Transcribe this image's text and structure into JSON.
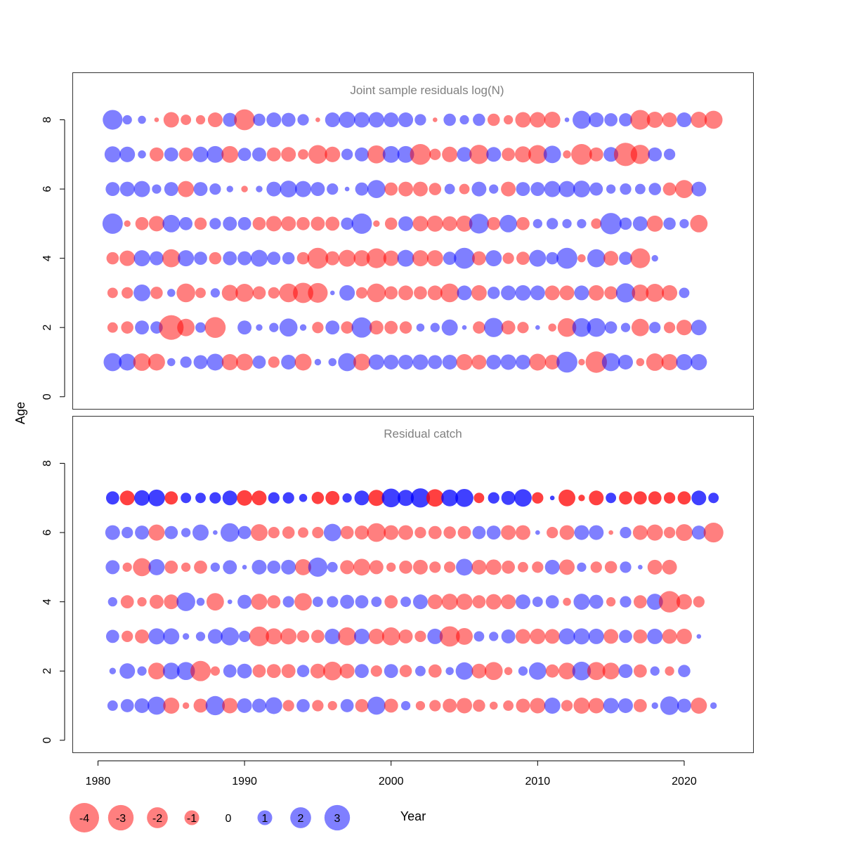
{
  "chart_data": {
    "type": "scatter",
    "kind": "bubble-residual-plot",
    "xlabel": "Year",
    "ylabel": "Age",
    "x_ticks": [
      1980,
      1990,
      2000,
      2010,
      2020
    ],
    "x_range": [
      1978.3,
      2024.7
    ],
    "y_ticks": [
      0,
      2,
      4,
      6,
      8
    ],
    "y_range": [
      -0.35,
      9.35
    ],
    "colors": {
      "positive": "#0000ff",
      "negative": "#ff0000"
    },
    "legend": {
      "position": "bottom-left",
      "values": [
        -4,
        -3,
        -2,
        -1,
        0,
        1,
        2,
        3
      ],
      "labels": [
        "-4",
        "-3",
        "-2",
        "-1",
        "0",
        "1",
        "2",
        "3"
      ]
    },
    "panels": [
      {
        "title": "Joint sample residuals log(N)",
        "first_year": 1981,
        "opacity": 0.5,
        "ages": [
          1,
          2,
          3,
          4,
          5,
          6,
          7,
          8
        ],
        "residuals": [
          [
            1.5,
            1.3,
            -1.4,
            -1.3,
            0.3,
            0.6,
            0.9,
            1.3,
            -1.2,
            -1.3,
            0.8,
            -0.6,
            1.0,
            -1.3,
            0.2,
            0.3,
            1.5,
            -1.3,
            1.1,
            1.0,
            1.0,
            1.1,
            0.9,
            1.0,
            -1.2,
            -1.0,
            1.0,
            1.1,
            1.0,
            -1.3,
            -1.0,
            2.0,
            -0.2,
            -2.1,
            1.5,
            1.0,
            -0.3,
            -1.4,
            -1.2,
            1.2,
            1.2
          ],
          [
            -0.5,
            -0.7,
            0.9,
            0.7,
            -2.8,
            -1.4,
            0.5,
            -2.0,
            0,
            0.9,
            0.2,
            0.4,
            1.5,
            0.2,
            -0.6,
            0.9,
            -0.7,
            1.9,
            -0.9,
            -0.8,
            -0.7,
            0.3,
            0.4,
            1.2,
            0.1,
            -0.7,
            1.7,
            -0.9,
            -0.6,
            0.1,
            -0.3,
            -1.6,
            1.6,
            1.6,
            0.7,
            0.4,
            -1.4,
            0.6,
            -0.6,
            -1.1,
            1.1
          ],
          [
            -0.5,
            -0.6,
            1.3,
            -0.7,
            0.3,
            -1.6,
            -0.5,
            0.4,
            -1.2,
            -1.5,
            -0.8,
            -0.6,
            -1.6,
            -1.9,
            -1.8,
            0.1,
            1.1,
            -0.6,
            -1.6,
            -0.8,
            -1.0,
            -0.8,
            -1.0,
            -1.6,
            1.0,
            -1.1,
            0.7,
            1.0,
            1.1,
            1.0,
            -1.0,
            -1.0,
            1.0,
            -1.1,
            -0.8,
            1.7,
            -1.3,
            -1.5,
            -1.1,
            0.5
          ],
          [
            -0.7,
            -1.1,
            1.2,
            0.9,
            -1.5,
            1.2,
            0.8,
            -0.7,
            0.9,
            0.9,
            1.3,
            0.8,
            0.7,
            -0.7,
            -2.0,
            -0.9,
            -1.3,
            -1.2,
            -1.8,
            -1.1,
            1.3,
            -1.2,
            -1.2,
            0.8,
            2.0,
            -0.9,
            1.2,
            -0.6,
            -0.8,
            1.3,
            0.7,
            2.0,
            -0.3,
            1.5,
            -1.0,
            0.8,
            -1.8,
            0.2
          ],
          [
            1.9,
            -0.2,
            -0.8,
            -1.1,
            1.4,
            0.8,
            -0.7,
            0.6,
            0.9,
            0.8,
            -0.8,
            -1.1,
            -1.0,
            -0.8,
            -0.9,
            -0.9,
            0.7,
            1.9,
            -0.2,
            -0.7,
            1.0,
            -1.1,
            -1.2,
            -1.0,
            -1.2,
            1.8,
            -0.8,
            1.4,
            -0.8,
            0.4,
            0.6,
            0.4,
            0.4,
            -0.5,
            2.1,
            0.7,
            1.0,
            -1.2,
            0.7,
            0.4,
            -1.4
          ],
          [
            0.9,
            1.0,
            1.2,
            0.4,
            0.9,
            -1.2,
            0.9,
            0.6,
            0.2,
            -0.2,
            0.2,
            1.0,
            1.3,
            1.2,
            0.9,
            0.6,
            0.1,
            0.8,
            1.5,
            -0.8,
            -1.0,
            -1.0,
            -0.7,
            0.5,
            -0.5,
            1.0,
            0.4,
            -1.0,
            0.9,
            0.9,
            1.2,
            1.2,
            1.3,
            0.8,
            0.4,
            0.6,
            0.5,
            0.7,
            -0.8,
            -1.5,
            1.0
          ],
          [
            1.2,
            1.1,
            0.3,
            -0.9,
            0.9,
            -0.9,
            1.1,
            1.3,
            -1.3,
            0.8,
            0.9,
            -0.9,
            -1.0,
            -0.5,
            -1.6,
            -1.1,
            0.6,
            0.9,
            -1.5,
            1.3,
            1.3,
            -2.0,
            -0.6,
            -1.1,
            1.0,
            -1.7,
            1.0,
            -0.8,
            -1.2,
            -1.6,
            1.4,
            -0.3,
            -2.0,
            -0.9,
            1.0,
            -2.5,
            -1.7,
            0.9,
            0.6
          ],
          [
            1.8,
            0.4,
            0.3,
            -0.1,
            -1.1,
            -0.5,
            -0.4,
            -1.0,
            0.9,
            -2.0,
            0.7,
            1.0,
            0.9,
            0.6,
            -0.1,
            1.0,
            1.2,
            1.1,
            1.1,
            1.0,
            1.0,
            0.6,
            -0.1,
            0.7,
            0.4,
            0.7,
            -0.7,
            -0.4,
            -1.1,
            -1.1,
            -1.2,
            0.1,
            1.5,
            1.0,
            0.8,
            0.8,
            -1.8,
            -1.2,
            -1.0,
            1.0,
            -1.2,
            -1.5
          ]
        ]
      },
      {
        "title": "Residual catch",
        "first_year": 1981,
        "opacity_by_age": [
          0.5,
          0.5,
          0.5,
          0.5,
          0.5,
          0.5,
          0.75
        ],
        "ages": [
          1,
          2,
          3,
          4,
          5,
          6,
          7
        ],
        "residuals": [
          [
            0.5,
            0.8,
            1.0,
            1.5,
            -1.2,
            -0.2,
            -0.9,
            1.7,
            -1.1,
            1.0,
            0.9,
            1.3,
            -0.6,
            0.8,
            -0.6,
            -0.4,
            0.8,
            -0.8,
            1.5,
            -0.9,
            0.4,
            -0.4,
            -0.6,
            -0.9,
            -1.1,
            -0.7,
            -0.3,
            -0.5,
            -0.9,
            -1.1,
            1.2,
            -0.6,
            -1.2,
            -1.1,
            1.1,
            1.0,
            -0.8,
            0.2,
            1.6,
            0.9,
            -1.2,
            0.2
          ],
          [
            0.2,
            1.1,
            0.4,
            -1.3,
            1.3,
            1.5,
            -1.9,
            -0.4,
            0.8,
            1.0,
            -0.8,
            -0.9,
            -0.9,
            0.7,
            -1.0,
            -1.6,
            -1.0,
            0.9,
            -0.6,
            0.9,
            -0.7,
            0.5,
            -0.8,
            0.3,
            1.4,
            -1.0,
            -1.5,
            -0.3,
            0.4,
            1.4,
            -0.8,
            -1.3,
            1.6,
            -1.5,
            -1.3,
            0.9,
            -0.8,
            0.4,
            -0.4,
            0.7
          ],
          [
            0.8,
            -0.6,
            -0.9,
            1.2,
            1.2,
            0.2,
            0.4,
            1.0,
            1.5,
            0.6,
            -1.8,
            -1.2,
            -1.2,
            -0.7,
            -0.8,
            1.1,
            -1.5,
            1.1,
            -1.1,
            -1.5,
            -0.9,
            -0.6,
            1.1,
            -1.9,
            -1.3,
            0.5,
            0.4,
            0.9,
            -1.0,
            -1.1,
            -1.0,
            1.2,
            1.2,
            1.1,
            -1.0,
            0.8,
            -0.9,
            1.1,
            -1.0,
            -1.1,
            0.1
          ],
          [
            0.4,
            -0.8,
            -0.4,
            -0.9,
            -1.0,
            1.6,
            0.3,
            -1.4,
            0.1,
            0.9,
            -1.2,
            -0.8,
            0.6,
            -1.4,
            0.5,
            0.6,
            0.9,
            0.8,
            0.5,
            -0.8,
            0.5,
            1.0,
            -1.0,
            -1.2,
            -1.2,
            -0.8,
            -1.1,
            -1.0,
            1.0,
            0.5,
            0.8,
            -0.3,
            1.2,
            0.9,
            -0.4,
            0.6,
            -0.8,
            1.2,
            -2.1,
            -1.1,
            -0.6
          ],
          [
            0.9,
            -0.4,
            -1.5,
            1.2,
            -0.8,
            -0.4,
            -0.8,
            0.4,
            0.9,
            0.1,
            1.0,
            0.8,
            1.0,
            -1.2,
            1.7,
            0.5,
            -0.9,
            -1.3,
            -0.9,
            -0.4,
            -0.8,
            -1.0,
            -0.6,
            -0.6,
            1.3,
            -1.0,
            -1.1,
            -0.8,
            -0.5,
            -0.6,
            1.0,
            -1.1,
            0.4,
            -0.6,
            -0.7,
            0.6,
            0.1,
            -1.0,
            -1.0
          ],
          [
            1.0,
            0.6,
            0.9,
            -1.2,
            0.8,
            0.4,
            1.2,
            0.1,
            1.6,
            0.8,
            -1.3,
            -0.6,
            -0.7,
            -0.5,
            -0.6,
            1.4,
            -0.8,
            -0.9,
            -1.6,
            -1.0,
            -1.0,
            -0.6,
            -0.8,
            -0.7,
            -0.8,
            0.8,
            0.9,
            -1.0,
            -1.0,
            0.1,
            -0.6,
            -1.0,
            1.0,
            1.0,
            -0.1,
            0.6,
            -1.0,
            -1.2,
            -0.6,
            -1.3,
            0.9,
            -1.8
          ],
          [
            0.8,
            -1.0,
            1.1,
            1.3,
            -0.8,
            0.5,
            0.5,
            0.6,
            1.0,
            -1.1,
            -1.0,
            0.6,
            0.6,
            0.3,
            -0.7,
            -0.9,
            0.4,
            1.0,
            -1.2,
            1.6,
            1.2,
            1.7,
            -1.4,
            1.3,
            1.5,
            -0.5,
            0.6,
            0.9,
            1.4,
            -0.6,
            0.1,
            -1.3,
            -0.2,
            -1.0,
            0.5,
            -0.8,
            -0.8,
            -0.8,
            -0.6,
            -0.8,
            1.0,
            0.5
          ]
        ]
      }
    ]
  }
}
